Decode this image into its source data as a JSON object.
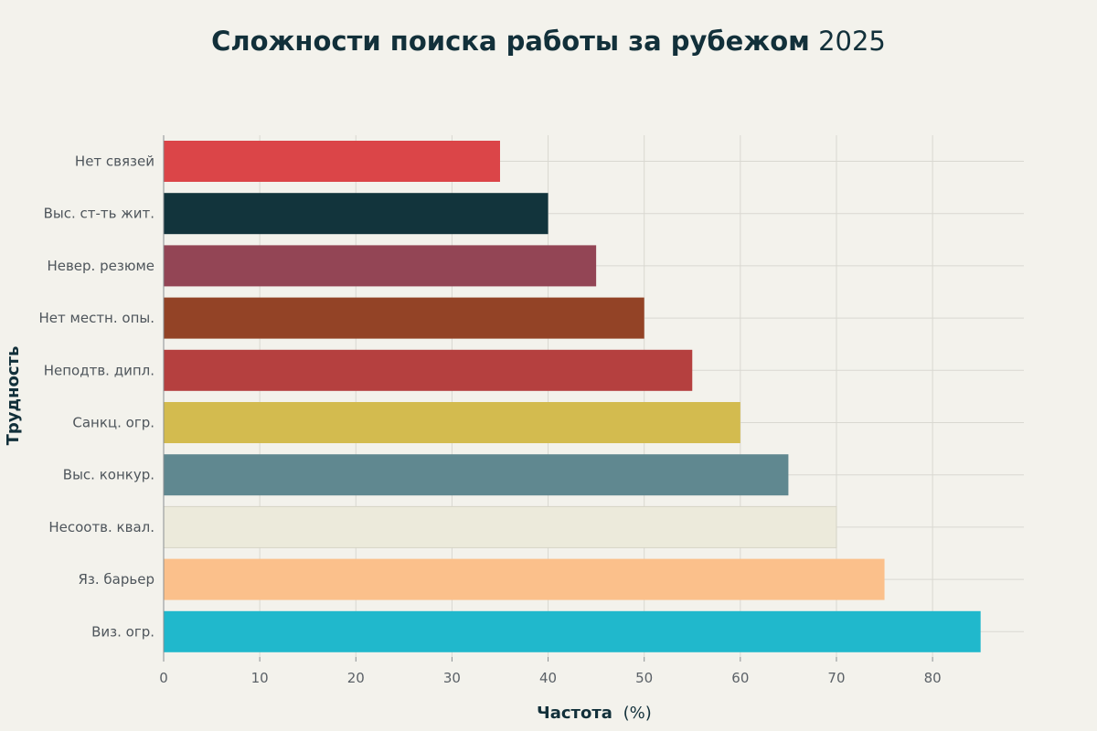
{
  "chart_data": {
    "type": "bar",
    "orientation": "horizontal",
    "title_bold": "Сложности поиска работы за рубежом",
    "title_light": "2025",
    "xlabel_bold": "Частота",
    "xlabel_light": "(%)",
    "ylabel": "Трудность",
    "categories": [
      "Нет связей",
      "Выс. ст-ть жит.",
      "Невер. резюме",
      "Нет местн. опы.",
      "Неподтв. дипл.",
      "Санкц. огр.",
      "Выс. конкур.",
      "Несоотв. квал.",
      "Яз. барьер",
      "Виз. огр."
    ],
    "values": [
      35,
      40,
      45,
      50,
      55,
      60,
      65,
      70,
      75,
      85
    ],
    "colors": [
      "#db4548",
      "#12343c",
      "#934555",
      "#934326",
      "#b5403f",
      "#d3bb4f",
      "#608890",
      "#eceadb",
      "#fbc08b",
      "#20b8cc"
    ],
    "xlim": [
      0,
      89.5
    ],
    "xticks": [
      0,
      10,
      20,
      30,
      40,
      50,
      60,
      70,
      80
    ],
    "grid": true
  }
}
